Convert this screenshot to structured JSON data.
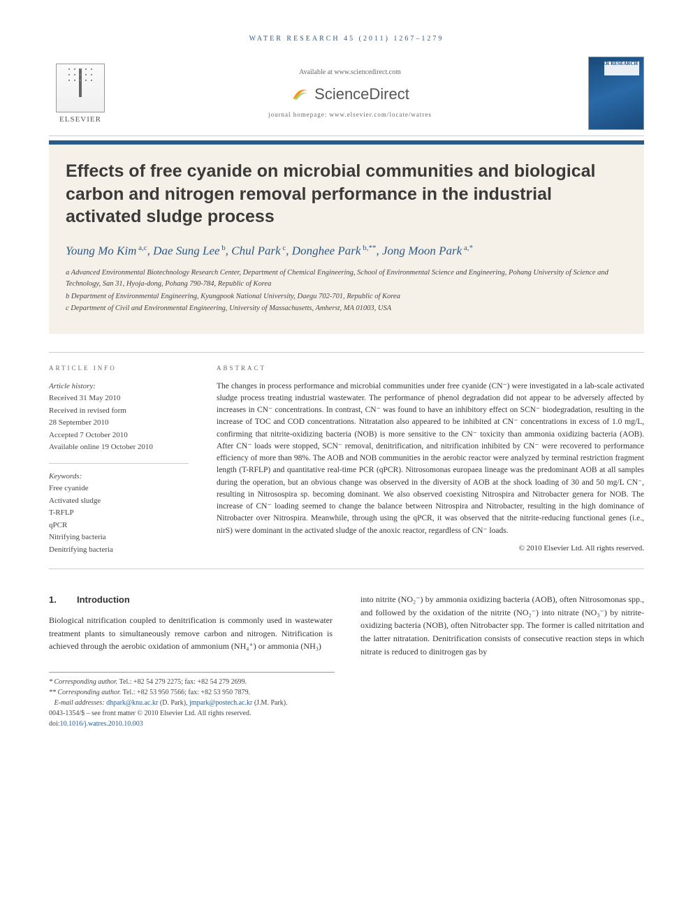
{
  "running_head": "WATER RESEARCH 45 (2011) 1267–1279",
  "header": {
    "available_at": "Available at www.sciencedirect.com",
    "sciencedirect": "ScienceDirect",
    "homepage_label": "journal homepage: www.elsevier.com/locate/watres",
    "publisher": "ELSEVIER",
    "journal_cover_title": "WATER RESEARCH"
  },
  "article": {
    "title": "Effects of free cyanide on microbial communities and biological carbon and nitrogen removal performance in the industrial activated sludge process",
    "authors_html": "Young Mo Kim<sup> a,c</sup>, Dae Sung Lee<sup> b</sup>, Chul Park<sup> c</sup>, Donghee Park<sup> b,**</sup>, Jong Moon Park<sup> a,*</sup>",
    "affiliations": {
      "a": "a Advanced Environmental Biotechnology Research Center, Department of Chemical Engineering, School of Environmental Science and Engineering, Pohang University of Science and Technology, San 31, Hyoja-dong, Pohang 790-784, Republic of Korea",
      "b": "b Department of Environmental Engineering, Kyungpook National University, Daegu 702-701, Republic of Korea",
      "c": "c Department of Civil and Environmental Engineering, University of Massachusetts, Amherst, MA 01003, USA"
    }
  },
  "article_info": {
    "label": "ARTICLE INFO",
    "history_label": "Article history:",
    "received": "Received 31 May 2010",
    "revised_label": "Received in revised form",
    "revised_date": "28 September 2010",
    "accepted": "Accepted 7 October 2010",
    "online": "Available online 19 October 2010",
    "keywords_label": "Keywords:",
    "keywords": [
      "Free cyanide",
      "Activated sludge",
      "T-RFLP",
      "qPCR",
      "Nitrifying bacteria",
      "Denitrifying bacteria"
    ]
  },
  "abstract": {
    "label": "ABSTRACT",
    "text": "The changes in process performance and microbial communities under free cyanide (CN⁻) were investigated in a lab-scale activated sludge process treating industrial wastewater. The performance of phenol degradation did not appear to be adversely affected by increases in CN⁻ concentrations. In contrast, CN⁻ was found to have an inhibitory effect on SCN⁻ biodegradation, resulting in the increase of TOC and COD concentrations. Nitratation also appeared to be inhibited at CN⁻ concentrations in excess of 1.0 mg/L, confirming that nitrite-oxidizing bacteria (NOB) is more sensitive to the CN⁻ toxicity than ammonia oxidizing bacteria (AOB). After CN⁻ loads were stopped, SCN⁻ removal, denitrification, and nitrification inhibited by CN⁻ were recovered to performance efficiency of more than 98%. The AOB and NOB communities in the aerobic reactor were analyzed by terminal restriction fragment length (T-RFLP) and quantitative real-time PCR (qPCR). Nitrosomonas europaea lineage was the predominant AOB at all samples during the operation, but an obvious change was observed in the diversity of AOB at the shock loading of 30 and 50 mg/L CN⁻, resulting in Nitrosospira sp. becoming dominant. We also observed coexisting Nitrospira and Nitrobacter genera for NOB. The increase of CN⁻ loading seemed to change the balance between Nitrospira and Nitrobacter, resulting in the high dominance of Nitrobacter over Nitrospira. Meanwhile, through using the qPCR, it was observed that the nitrite-reducing functional genes (i.e., nirS) were dominant in the activated sludge of the anoxic reactor, regardless of CN⁻ loads.",
    "copyright": "© 2010 Elsevier Ltd. All rights reserved."
  },
  "body": {
    "section_num": "1.",
    "section_title": "Introduction",
    "col1": "Biological nitrification coupled to denitrification is commonly used in wastewater treatment plants to simultaneously remove carbon and nitrogen. Nitrification is achieved through the aerobic oxidation of ammonium (NH₄⁺) or ammonia (NH₃)",
    "col2": "into nitrite (NO₂⁻) by ammonia oxidizing bacteria (AOB), often Nitrosomonas spp., and followed by the oxidation of the nitrite (NO₂⁻) into nitrate (NO₃⁻) by nitrite-oxidizing bacteria (NOB), often Nitrobacter spp. The former is called nitritation and the latter nitratation. Denitrification consists of consecutive reaction steps in which nitrate is reduced to dinitrogen gas by"
  },
  "footnotes": {
    "corr1_label": "* Corresponding author.",
    "corr1_contact": "Tel.: +82 54 279 2275; fax: +82 54 279 2699.",
    "corr2_label": "** Corresponding author.",
    "corr2_contact": "Tel.: +82 53 950 7566; fax: +82 53 950 7879.",
    "emails_label": "E-mail addresses:",
    "email1": "dhpark@knu.ac.kr",
    "email1_name": "(D. Park),",
    "email2": "jmpark@postech.ac.kr",
    "email2_name": "(J.M. Park).",
    "issn_line": "0043-1354/$ – see front matter © 2010 Elsevier Ltd. All rights reserved.",
    "doi_label": "doi:",
    "doi": "10.1016/j.watres.2010.10.003"
  },
  "colors": {
    "brand_blue": "#2a5a8a",
    "band_bg": "#f5f0e8",
    "sd_orange": "#f7941e"
  }
}
